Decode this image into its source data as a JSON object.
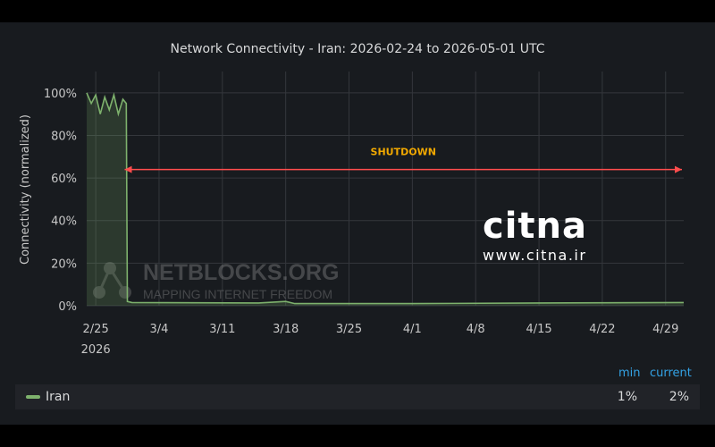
{
  "chart_data": {
    "type": "area",
    "title": "Network Connectivity - Iran: 2026-02-24 to 2026-05-01 UTC",
    "ylabel": "Connectivity (normalized)",
    "xlabel": "",
    "ylim": [
      0,
      1.1
    ],
    "xlim": [
      "2026-02-24",
      "2026-05-01"
    ],
    "y_ticks": [
      "0%",
      "20%",
      "40%",
      "60%",
      "80%",
      "100%"
    ],
    "x_ticks": [
      {
        "date": "2026-02-25",
        "label": "2/25",
        "sub": "2026"
      },
      {
        "date": "2026-03-04",
        "label": "3/4"
      },
      {
        "date": "2026-03-11",
        "label": "3/11"
      },
      {
        "date": "2026-03-18",
        "label": "3/18"
      },
      {
        "date": "2026-03-25",
        "label": "3/25"
      },
      {
        "date": "2026-04-01",
        "label": "4/1"
      },
      {
        "date": "2026-04-08",
        "label": "4/8"
      },
      {
        "date": "2026-04-15",
        "label": "4/15"
      },
      {
        "date": "2026-04-22",
        "label": "4/22"
      },
      {
        "date": "2026-04-29",
        "label": "4/29"
      }
    ],
    "grid": true,
    "series": [
      {
        "name": "Iran",
        "color": "#7eb26d",
        "points": [
          [
            "2026-02-24",
            1.0
          ],
          [
            "2026-02-24T12",
            0.95
          ],
          [
            "2026-02-25",
            0.99
          ],
          [
            "2026-02-25T12",
            0.9
          ],
          [
            "2026-02-26",
            0.98
          ],
          [
            "2026-02-26T12",
            0.92
          ],
          [
            "2026-02-27",
            0.99
          ],
          [
            "2026-02-27T12",
            0.9
          ],
          [
            "2026-02-28",
            0.97
          ],
          [
            "2026-02-28T09",
            0.95
          ],
          [
            "2026-02-28T12",
            0.02
          ],
          [
            "2026-03-01",
            0.015
          ],
          [
            "2026-03-15",
            0.013
          ],
          [
            "2026-03-18",
            0.02
          ],
          [
            "2026-03-19",
            0.01
          ],
          [
            "2026-04-01",
            0.01
          ],
          [
            "2026-04-15",
            0.013
          ],
          [
            "2026-05-01",
            0.015
          ]
        ]
      }
    ],
    "annotation": {
      "text": "SHUTDOWN",
      "from": "2026-02-28",
      "to": "2026-05-01",
      "y": 0.64,
      "color": "#ff4d4d",
      "text_color": "#f2a900"
    },
    "legend_placement": "bottom",
    "legend": {
      "columns": [
        "min",
        "current"
      ],
      "rows": [
        {
          "name": "Iran",
          "min": "1%",
          "current": "2%"
        }
      ]
    }
  },
  "watermarks": {
    "netblocks": "NETBLOCKS.ORG",
    "netblocks_tagline": "MAPPING INTERNET FREEDOM",
    "citna": "citna",
    "citna_url": "www.citna.ir"
  }
}
